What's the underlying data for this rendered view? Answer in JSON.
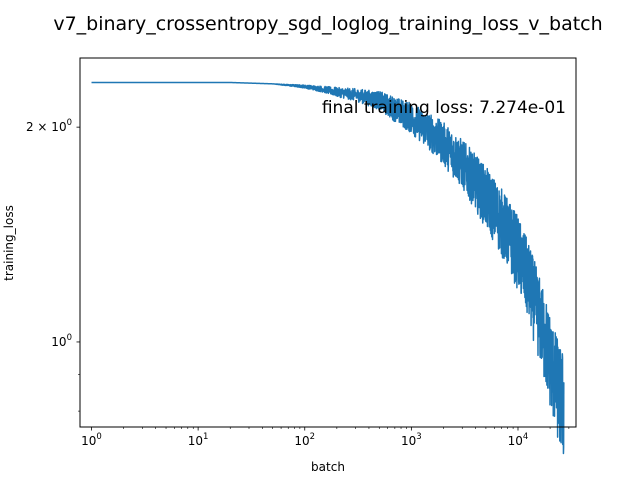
{
  "chart_data": {
    "type": "line",
    "title": "v7_binary_crossentropy_sgd_loglog_training_loss_v_batch",
    "xlabel": "batch",
    "ylabel": "training_loss",
    "xscale": "log",
    "yscale": "log",
    "xlim": [
      0.78,
      35000
    ],
    "ylim": [
      0.76,
      2.5
    ],
    "grid": false,
    "line_color": "#1f77b4",
    "x_major_ticks": [
      {
        "value": 1,
        "base": "10",
        "exp": "0"
      },
      {
        "value": 10,
        "base": "10",
        "exp": "1"
      },
      {
        "value": 100,
        "base": "10",
        "exp": "2"
      },
      {
        "value": 1000,
        "base": "10",
        "exp": "3"
      },
      {
        "value": 10000,
        "base": "10",
        "exp": "4"
      }
    ],
    "y_major_ticks": [
      {
        "value": 2,
        "base": "2 × 10",
        "exp": "0"
      },
      {
        "value": 1,
        "base": "10",
        "exp": "0"
      }
    ],
    "annotation": "final training loss: 7.274e-01",
    "series": [
      {
        "x": [
          1,
          2,
          5,
          10,
          20,
          50,
          100,
          150,
          200,
          300,
          500,
          700,
          1000,
          1500,
          2000,
          3000,
          4000,
          5000,
          7000,
          10000,
          13000,
          16000,
          19000,
          22000,
          25000,
          27000
        ],
        "y": [
          2.31,
          2.31,
          2.31,
          2.31,
          2.31,
          2.3,
          2.28,
          2.26,
          2.24,
          2.22,
          2.18,
          2.12,
          2.06,
          1.97,
          1.9,
          1.78,
          1.68,
          1.6,
          1.48,
          1.34,
          1.2,
          1.08,
          0.98,
          0.9,
          0.84,
          0.82
        ],
        "noise": [
          0,
          0,
          0,
          0,
          0,
          0,
          0.005,
          0.01,
          0.015,
          0.02,
          0.03,
          0.04,
          0.05,
          0.06,
          0.07,
          0.08,
          0.09,
          0.1,
          0.11,
          0.12,
          0.13,
          0.14,
          0.15,
          0.16,
          0.17,
          0.18
        ]
      }
    ]
  }
}
